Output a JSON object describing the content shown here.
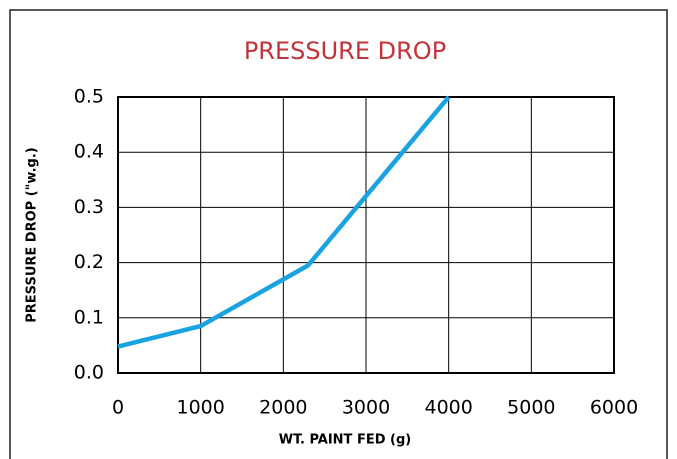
{
  "chart_data": {
    "type": "line",
    "title": "PRESSURE DROP",
    "x_label": "WT. PAINT FED (g)",
    "y_label": "PRESSURE DROP (\"w.g.)",
    "x": [
      0,
      1000,
      2300,
      4000
    ],
    "series": [
      {
        "name": "Pressure drop",
        "color": "#1aa3e0",
        "values": [
          0.048,
          0.085,
          0.195,
          0.5
        ]
      }
    ],
    "xlim": [
      0,
      6000
    ],
    "xticks": [
      0,
      1000,
      2000,
      3000,
      4000,
      5000,
      6000
    ],
    "ylim": [
      0,
      0.5
    ],
    "yticks": [
      {
        "value": 0,
        "label": "0.0"
      },
      0.1,
      0.2,
      0.3,
      0.4,
      0.5
    ],
    "grid": true
  }
}
